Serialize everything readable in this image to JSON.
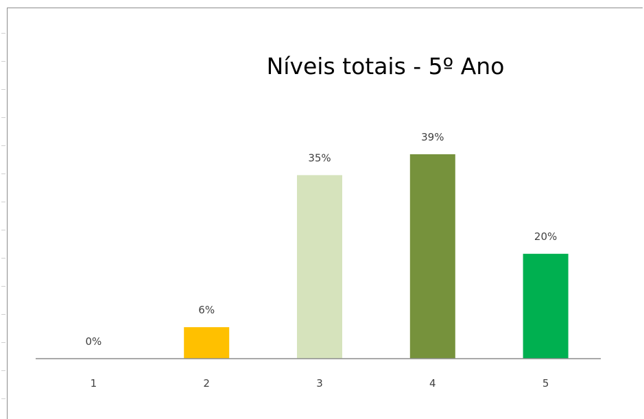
{
  "chart_data": {
    "type": "bar",
    "title": "Níveis totais  - 5º Ano",
    "xlabel": "",
    "ylabel": "",
    "categories": [
      "1",
      "2",
      "3",
      "4",
      "5"
    ],
    "values": [
      0,
      6,
      35,
      39,
      20
    ],
    "data_labels": [
      "0%",
      "6%",
      "35%",
      "39%",
      "20%"
    ],
    "bar_colors": [
      "#ffffff",
      "#ffc000",
      "#d6e3bc",
      "#76923c",
      "#00b050"
    ],
    "ylim": [
      0,
      45
    ],
    "grid": false,
    "legend": "none"
  }
}
